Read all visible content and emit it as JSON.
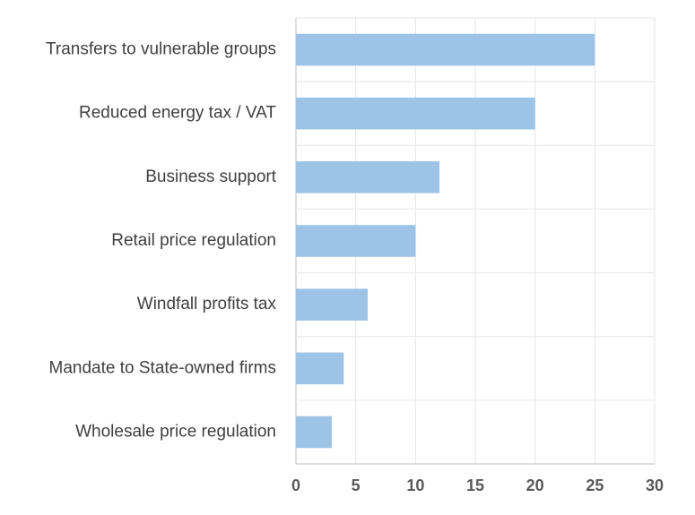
{
  "chart_data": {
    "type": "bar",
    "orientation": "horizontal",
    "title": "",
    "xlabel": "",
    "ylabel": "",
    "categories": [
      "Transfers to vulnerable groups",
      "Reduced energy tax / VAT",
      "Business support",
      "Retail price regulation",
      "Windfall profits tax",
      "Mandate to State-owned firms",
      "Wholesale price regulation"
    ],
    "values": [
      25,
      20,
      12,
      10,
      6,
      4,
      3
    ],
    "xlim": [
      0,
      30
    ],
    "xticks": [
      0,
      5,
      10,
      15,
      20,
      25,
      30
    ],
    "grid": true,
    "legend": "none",
    "bar_color": "#9dc3e6"
  }
}
